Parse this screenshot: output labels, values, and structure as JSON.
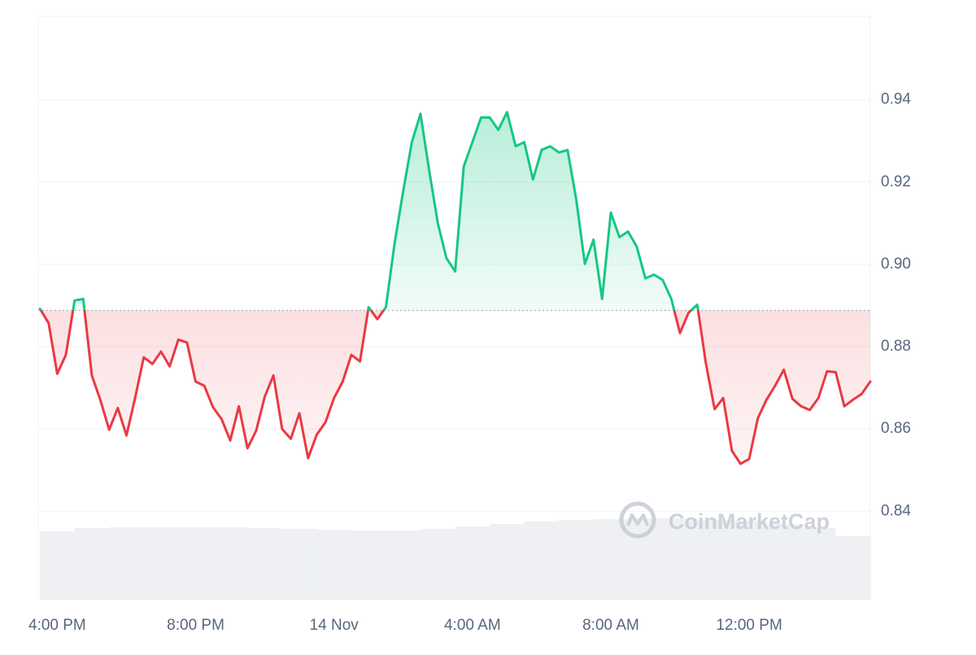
{
  "chart_data": {
    "type": "line",
    "x": [
      15.5,
      15.75,
      16,
      16.25,
      16.5,
      16.75,
      17,
      17.25,
      17.5,
      17.75,
      18,
      18.25,
      18.5,
      18.75,
      19,
      19.25,
      19.5,
      19.75,
      20,
      20.25,
      20.5,
      20.75,
      21,
      21.25,
      21.5,
      21.75,
      22,
      22.25,
      22.5,
      22.75,
      23,
      23.25,
      23.5,
      23.75,
      24,
      24.25,
      24.5,
      24.75,
      25,
      25.25,
      25.5,
      25.75,
      26,
      26.25,
      26.5,
      26.75,
      27,
      27.25,
      27.5,
      27.75,
      28,
      28.25,
      28.5,
      28.75,
      29,
      29.25,
      29.5,
      29.75,
      30,
      30.25,
      30.5,
      30.75,
      31,
      31.25,
      31.5,
      31.75,
      32,
      32.25,
      32.5,
      32.75,
      33,
      33.25,
      33.5,
      33.75,
      34,
      34.25,
      34.5,
      34.75,
      35,
      35.25,
      35.5,
      35.75,
      36,
      36.25,
      36.5,
      36.75,
      37,
      37.25,
      37.5,
      37.75,
      38,
      38.25,
      38.5,
      38.75,
      39,
      39.25,
      39.5
    ],
    "values": [
      0.8892,
      0.8857,
      0.8734,
      0.878,
      0.8912,
      0.8916,
      0.873,
      0.8669,
      0.8598,
      0.8651,
      0.8584,
      0.8675,
      0.8774,
      0.8758,
      0.8788,
      0.8752,
      0.8817,
      0.881,
      0.8715,
      0.8705,
      0.8653,
      0.8624,
      0.8572,
      0.8655,
      0.8553,
      0.8596,
      0.8679,
      0.873,
      0.86,
      0.8576,
      0.8638,
      0.8529,
      0.8586,
      0.8616,
      0.8675,
      0.8715,
      0.878,
      0.8764,
      0.8896,
      0.8867,
      0.8896,
      0.905,
      0.9179,
      0.9297,
      0.9366,
      0.9228,
      0.91,
      0.9015,
      0.8983,
      0.9238,
      0.9297,
      0.9357,
      0.9357,
      0.9327,
      0.937,
      0.9287,
      0.9297,
      0.9206,
      0.9278,
      0.9287,
      0.9272,
      0.9278,
      0.9159,
      0.9001,
      0.906,
      0.8916,
      0.9126,
      0.9066,
      0.908,
      0.9043,
      0.8966,
      0.8975,
      0.8962,
      0.8916,
      0.8833,
      0.8883,
      0.8902,
      0.8758,
      0.8648,
      0.8675,
      0.8547,
      0.8515,
      0.8527,
      0.8626,
      0.8671,
      0.8705,
      0.8744,
      0.8673,
      0.8655,
      0.8646,
      0.8675,
      0.874,
      0.8738,
      0.8655,
      0.8671,
      0.8685,
      0.8715
    ],
    "baseline": 0.8888,
    "up_color": "#16c784",
    "down_color": "#ea3943",
    "xlim": [
      15.45,
      39.5
    ],
    "ylim": [
      0.8185,
      0.9603
    ],
    "xticks": [
      {
        "value": 16,
        "label": "4:00 PM"
      },
      {
        "value": 20,
        "label": "8:00 PM"
      },
      {
        "value": 24,
        "label": "14 Nov"
      },
      {
        "value": 28,
        "label": "4:00 AM"
      },
      {
        "value": 32,
        "label": "8:00 AM"
      },
      {
        "value": 36,
        "label": "12:00 PM"
      }
    ],
    "yticks": [
      0.84,
      0.86,
      0.88,
      {
        "value": 0.9,
        "label": "0.90"
      },
      0.92,
      0.94
    ],
    "grid": true,
    "watermark": "CoinMarketCap",
    "volume": {
      "color": "#eef0f3",
      "x": [
        16,
        17,
        18,
        19,
        20,
        21,
        22,
        23,
        24,
        25,
        26,
        27,
        28,
        29,
        30,
        31,
        32,
        33,
        34,
        35,
        36,
        37,
        38,
        39
      ],
      "values": [
        84,
        88,
        89,
        89,
        89,
        89,
        88,
        87,
        86,
        85,
        85,
        87,
        90,
        93,
        96,
        98,
        99,
        100,
        100,
        98,
        97,
        93,
        88,
        78
      ]
    }
  }
}
